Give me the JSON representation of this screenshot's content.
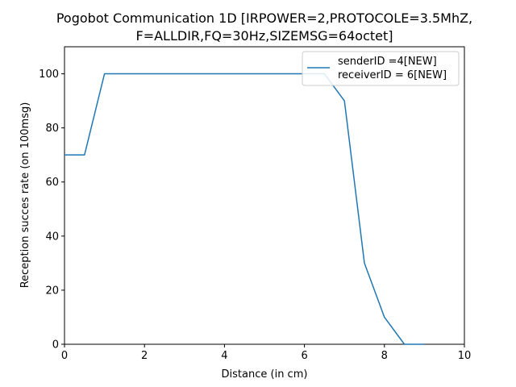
{
  "chart_data": {
    "type": "line",
    "title_lines": [
      "Pogobot Communication 1D [IRPOWER=2,PROTOCOLE=3.5MhZ,",
      "F=ALLDIR,FQ=30Hz,SIZEMSG=64octet]"
    ],
    "xlabel": "Distance (in cm)",
    "ylabel": "Reception succes rate (on 100msg)",
    "xlim": [
      0,
      10
    ],
    "ylim": [
      0,
      110
    ],
    "xticks": [
      0,
      2,
      4,
      6,
      8,
      10
    ],
    "yticks": [
      0,
      20,
      40,
      60,
      80,
      100
    ],
    "grid": false,
    "legend_position": "upper-right",
    "legend_lines": [
      "senderID =4[NEW]",
      "receiverID = 6[NEW]"
    ],
    "series": [
      {
        "color": "#1f77b4",
        "x": [
          0,
          0.5,
          1.0,
          1.5,
          2.0,
          2.5,
          3.0,
          3.5,
          4.0,
          4.5,
          5.0,
          5.5,
          6.0,
          6.5,
          7.0,
          7.5,
          8.0,
          8.5,
          9.0
        ],
        "y": [
          70,
          70,
          100,
          100,
          100,
          100,
          100,
          100,
          100,
          100,
          100,
          100,
          100,
          100,
          90,
          30,
          10,
          0,
          0
        ]
      }
    ]
  }
}
